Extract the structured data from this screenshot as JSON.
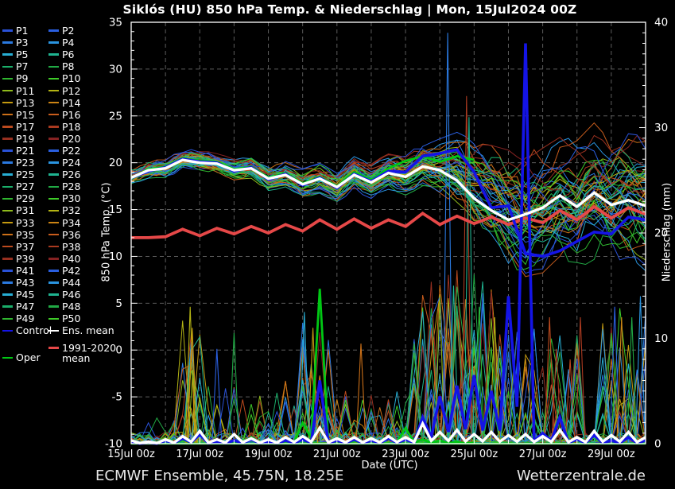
{
  "footer": {
    "left": "ECMWF Ensemble, 45.75N, 18.25E",
    "right": "Wetterzentrale.de"
  },
  "legend": {
    "member_labels": [
      "P1",
      "P2",
      "P3",
      "P4",
      "P5",
      "P6",
      "P7",
      "P8",
      "P9",
      "P10",
      "P11",
      "P12",
      "P13",
      "P14",
      "P15",
      "P16",
      "P17",
      "P18",
      "P19",
      "P20",
      "P21",
      "P22",
      "P23",
      "P24",
      "P25",
      "P26",
      "P27",
      "P28",
      "P29",
      "P30",
      "P31",
      "P32",
      "P33",
      "P34",
      "P35",
      "P36",
      "P37",
      "P38",
      "P39",
      "P40",
      "P41",
      "P42",
      "P43",
      "P44",
      "P45",
      "P46",
      "P47",
      "P48",
      "P49",
      "P50"
    ],
    "control_label": "Control",
    "ens_mean_label": "Ens. mean",
    "climate_label_line1": "1991-2020",
    "climate_label_line2": "mean",
    "oper_label": "Oper"
  },
  "colors": {
    "background": "#000000",
    "axis": "#ffffff",
    "grid": "#5c5c5c",
    "control": "#1414e6",
    "ens_mean": "#ffffff",
    "oper": "#00c814",
    "climate": "#e64848",
    "member_palette": [
      "#2a52d8",
      "#2a5fe0",
      "#2a79e0",
      "#2a94e0",
      "#27aed4",
      "#1fb491",
      "#1aae6a",
      "#21aa45",
      "#2fb62f",
      "#3ecc28",
      "#8fba1c",
      "#b4b414",
      "#c49a10",
      "#cc8414",
      "#cc7018",
      "#c85c1c",
      "#bc4a1e",
      "#aa3a20",
      "#983020",
      "#862222"
    ]
  },
  "chart_data": {
    "type": "line",
    "title": "Siklós  (HU)  850 hPa Temp. & Niederschlag | Mon, 15Jul2024 00Z",
    "xlabel": "Date (UTC)",
    "ylabel_left": "850 hPa Temp. (°C)",
    "ylabel_right": "Niederschlag (mm)",
    "x_tick_labels": [
      "15Jul 00z",
      "17Jul 00z",
      "19Jul 00z",
      "21Jul 00z",
      "23Jul 00z",
      "25Jul 00z",
      "27Jul 00z",
      "29Jul 00z"
    ],
    "x_tick_days": [
      0,
      2,
      4,
      6,
      8,
      10,
      12,
      14
    ],
    "x_range_days": [
      0,
      15
    ],
    "ylim_left": [
      -10,
      35
    ],
    "ylim_right": [
      0,
      40
    ],
    "y_ticks_left": [
      35,
      30,
      25,
      20,
      15,
      10,
      5,
      0,
      -5,
      -10
    ],
    "y_ticks_right": [
      0,
      10,
      20,
      30,
      40
    ],
    "grid": {
      "h_lines_temp": [
        30,
        25,
        20,
        15,
        10,
        5,
        0,
        -5
      ],
      "v_line_every_days": 1,
      "legend_position": "outside-left"
    },
    "time_step_hours": 12,
    "series": {
      "ens_mean_temp": [
        18.4,
        19.2,
        19.4,
        20.3,
        20.0,
        19.9,
        19.2,
        19.4,
        18.3,
        18.7,
        17.7,
        18.3,
        17.4,
        18.7,
        17.9,
        18.9,
        18.5,
        19.6,
        19.2,
        18.1,
        16.2,
        14.9,
        13.9,
        14.5,
        15.2,
        16.5,
        15.3,
        16.8,
        15.5,
        16.0,
        15.4
      ],
      "control_temp": [
        18.4,
        19.1,
        19.5,
        20.4,
        20.1,
        20.0,
        19.1,
        19.5,
        18.2,
        18.8,
        17.6,
        18.4,
        17.3,
        18.8,
        18.0,
        19.1,
        19.0,
        20.7,
        21.0,
        21.4,
        19.0,
        15.2,
        15.4,
        10.3,
        10.0,
        10.6,
        11.6,
        12.6,
        12.4,
        14.2,
        13.9
      ],
      "climate_temp": [
        12.0,
        12.0,
        12.1,
        12.9,
        12.2,
        13.0,
        12.4,
        13.2,
        12.5,
        13.4,
        12.7,
        13.9,
        12.9,
        14.0,
        13.0,
        13.9,
        13.2,
        14.6,
        13.4,
        14.3,
        13.5,
        14.2,
        13.4,
        14.1,
        13.6,
        14.9,
        13.9,
        15.3,
        14.1,
        15.2,
        14.5
      ],
      "oper_temp": [
        18.3,
        19.3,
        19.6,
        20.5,
        20.2,
        20.1,
        19.3,
        19.6,
        18.4,
        18.9,
        17.8,
        18.5,
        17.5,
        19.0,
        18.2,
        19.4,
        20.2,
        20.7,
        20.1,
        20.7,
        20.3
      ],
      "ens_mean_precip": [
        0.3,
        0.2,
        0.4,
        0.7,
        1.2,
        0.4,
        0.9,
        0.5,
        0.4,
        0.6,
        0.7,
        1.5,
        0.5,
        0.6,
        0.5,
        0.7,
        0.6,
        1.9,
        1.1,
        1.3,
        0.9,
        1.1,
        0.8,
        0.9,
        0.7,
        1.3,
        0.6,
        1.2,
        0.8,
        1.1,
        0.6
      ],
      "control_precip": [
        0.2,
        0.1,
        0.3,
        0.5,
        0.9,
        0.2,
        0.3,
        0.4,
        0.2,
        0.3,
        0.4,
        6.0,
        0.3,
        0.4,
        0.3,
        0.5,
        0.4,
        2.5,
        4.5,
        5.5,
        6.5,
        5.0,
        14.0,
        38.0,
        1.0,
        2.5,
        0.4,
        0.8,
        0.3,
        0.6,
        0.3
      ],
      "oper_precip": [
        0.2,
        0.1,
        0.3,
        0.4,
        1.0,
        0.3,
        0.2,
        0.6,
        0.3,
        0.4,
        2.0,
        14.7,
        0.4,
        0.3,
        0.3,
        0.5,
        1.5,
        0.4,
        0.3,
        0.2,
        0.1
      ]
    },
    "ensemble": {
      "member_count": 50,
      "temp_envelope_min": [
        17.6,
        18.3,
        18.3,
        19.2,
        19.0,
        18.9,
        18.1,
        18.3,
        16.9,
        17.3,
        16.2,
        16.7,
        15.7,
        17.0,
        16.1,
        17.1,
        16.5,
        17.4,
        16.3,
        15.0,
        12.5,
        10.8,
        9.2,
        7.8,
        8.2,
        9.2,
        8.6,
        9.6,
        8.8,
        9.2,
        8.2
      ],
      "temp_envelope_max": [
        19.3,
        20.2,
        20.5,
        21.4,
        21.5,
        21.1,
        20.4,
        20.7,
        19.7,
        20.2,
        19.4,
        20.0,
        19.2,
        20.7,
        19.9,
        21.1,
        20.9,
        22.4,
        22.6,
        23.3,
        22.4,
        21.9,
        21.4,
        21.0,
        21.9,
        22.9,
        22.4,
        24.3,
        23.4,
        24.8,
        24.3
      ],
      "precip_spike_windows": [
        {
          "start_day": 0.2,
          "end_day": 1.4,
          "step_prob": 0.05,
          "max_mm": 2.5
        },
        {
          "start_day": 1.5,
          "end_day": 2.1,
          "step_prob": 0.18,
          "max_mm": 13
        },
        {
          "start_day": 2.2,
          "end_day": 4.9,
          "step_prob": 0.07,
          "max_mm": 6
        },
        {
          "start_day": 4.9,
          "end_day": 5.9,
          "step_prob": 0.16,
          "max_mm": 12
        },
        {
          "start_day": 5.9,
          "end_day": 8.1,
          "step_prob": 0.09,
          "max_mm": 5
        },
        {
          "start_day": 8.1,
          "end_day": 10.9,
          "step_prob": 0.16,
          "max_mm": 17
        },
        {
          "start_day": 10.9,
          "end_day": 13.1,
          "step_prob": 0.11,
          "max_mm": 11
        },
        {
          "start_day": 13.6,
          "end_day": 15.0,
          "step_prob": 0.14,
          "max_mm": 13
        }
      ],
      "notable_precip_spikes": [
        {
          "day": 1.72,
          "mm": 13,
          "color_index": 11
        },
        {
          "day": 1.78,
          "mm": 11,
          "color_index": 12
        },
        {
          "day": 1.75,
          "mm": 9,
          "color_index": 13
        },
        {
          "day": 1.8,
          "mm": 7,
          "color_index": 10
        },
        {
          "day": 2.5,
          "mm": 9,
          "color_index": 1
        },
        {
          "day": 3.0,
          "mm": 10.5,
          "color_index": 7
        },
        {
          "day": 5.05,
          "mm": 12.5,
          "color_index": 4
        },
        {
          "day": 5.3,
          "mm": 11,
          "color_index": 12
        },
        {
          "day": 6.7,
          "mm": 9.5,
          "color_index": 14
        },
        {
          "day": 9.0,
          "mm": 14,
          "color_index": 10
        },
        {
          "day": 9.23,
          "mm": 39,
          "color_index": 2
        },
        {
          "day": 9.4,
          "mm": 15,
          "color_index": 5
        },
        {
          "day": 9.78,
          "mm": 33,
          "color_index": 17
        },
        {
          "day": 9.85,
          "mm": 31,
          "color_index": 5
        },
        {
          "day": 10.15,
          "mm": 13,
          "color_index": 8
        },
        {
          "day": 10.6,
          "mm": 12,
          "color_index": 11
        },
        {
          "day": 12.2,
          "mm": 12,
          "color_index": 16
        },
        {
          "day": 12.4,
          "mm": 9,
          "color_index": 17
        },
        {
          "day": 12.8,
          "mm": 8,
          "color_index": 16
        },
        {
          "day": 13.1,
          "mm": 12,
          "color_index": 17
        },
        {
          "day": 14.1,
          "mm": 13,
          "color_index": 1
        },
        {
          "day": 14.3,
          "mm": 12,
          "color_index": 13
        },
        {
          "day": 14.6,
          "mm": 12,
          "color_index": 7
        },
        {
          "day": 14.85,
          "mm": 14,
          "color_index": 3
        }
      ]
    }
  }
}
